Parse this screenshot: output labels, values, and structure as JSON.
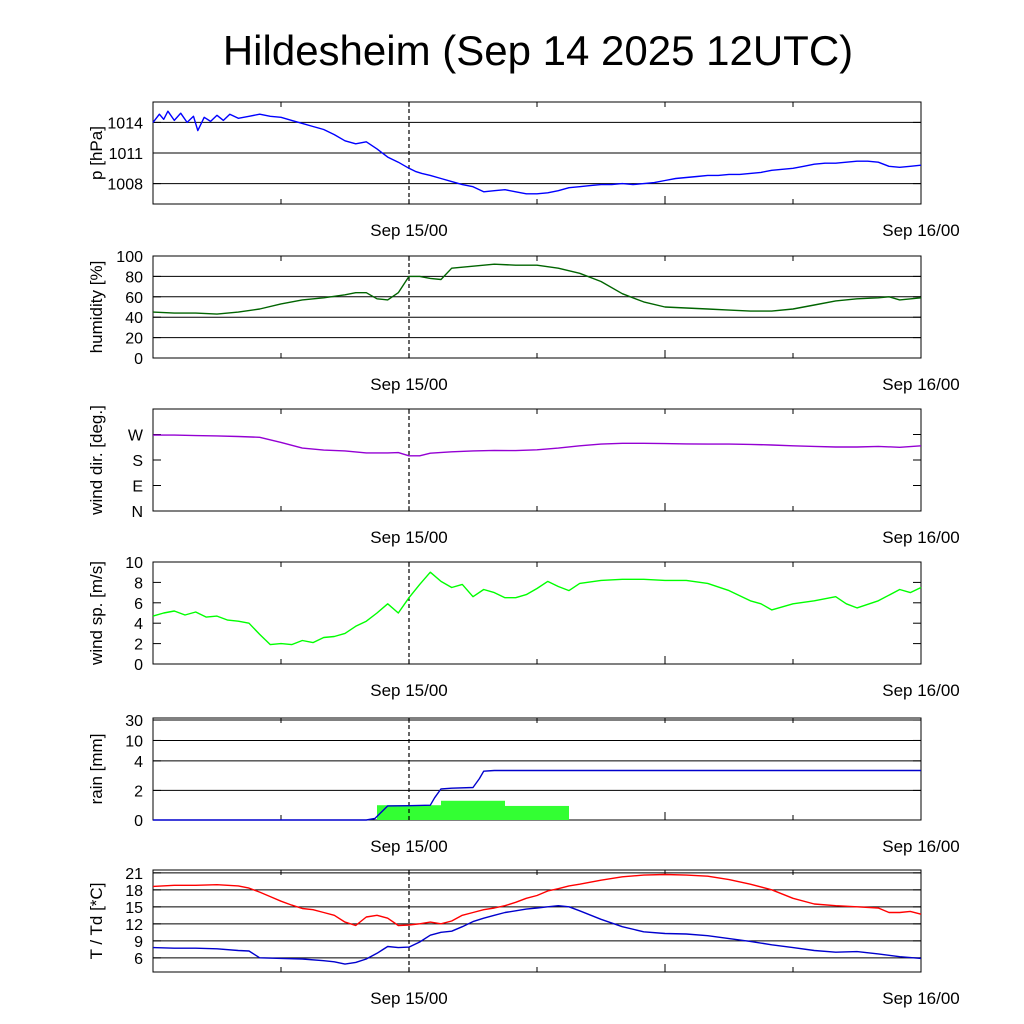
{
  "title": "Hildesheim (Sep 14 2025 12UTC)",
  "colors": {
    "pressure": "#0000ff",
    "humidity": "#006400",
    "wind_dir": "#9400d3",
    "wind_speed": "#00ff00",
    "rain_bar": "#33ff33",
    "rain_sum": "#0000cd",
    "temperature": "#ff0000",
    "dewpoint": "#0000cd",
    "gridline": "#000000"
  },
  "chart_data": [
    {
      "type": "line",
      "ylabel": "p [hPa]",
      "x_tick_labels": [
        "Sep 15/00",
        "Sep 16/00"
      ],
      "x_range": [
        0,
        36
      ],
      "ylim": [
        1006,
        1016
      ],
      "yticks": [
        {
          "v": 1008,
          "label": "1008"
        },
        {
          "v": 1011,
          "label": "1011"
        },
        {
          "v": 1014,
          "label": "1014"
        }
      ],
      "gridlines": [
        1008,
        1011,
        1014
      ],
      "series": [
        {
          "color_key": "pressure",
          "x": [
            0,
            0.3,
            0.5,
            0.7,
            1,
            1.3,
            1.6,
            1.9,
            2.1,
            2.4,
            2.7,
            3,
            3.3,
            3.6,
            4,
            4.5,
            5,
            5.5,
            6,
            6.5,
            7,
            7.5,
            8,
            8.5,
            9,
            9.5,
            10,
            10.5,
            11,
            11.5,
            12,
            12.3,
            12.6,
            13,
            13.5,
            14,
            14.5,
            15,
            15.5,
            16,
            16.5,
            17,
            17.5,
            18,
            18.5,
            19,
            19.5,
            20,
            20.5,
            21,
            21.5,
            22,
            22.5,
            23,
            23.5,
            24,
            24.5,
            25,
            25.5,
            26,
            26.5,
            27,
            27.5,
            28,
            28.5,
            29,
            29.5,
            30,
            30.5,
            31,
            31.5,
            32,
            32.5,
            33,
            33.5,
            34,
            34.5,
            35,
            35.5,
            36
          ],
          "values": [
            1014,
            1014.8,
            1014.3,
            1015.1,
            1014.2,
            1014.9,
            1014.0,
            1014.6,
            1013.2,
            1014.5,
            1014.1,
            1014.7,
            1014.2,
            1014.8,
            1014.4,
            1014.6,
            1014.8,
            1014.6,
            1014.5,
            1014.2,
            1013.9,
            1013.6,
            1013.3,
            1012.8,
            1012.2,
            1011.9,
            1012.1,
            1011.4,
            1010.6,
            1010.1,
            1009.5,
            1009.2,
            1009.0,
            1008.8,
            1008.5,
            1008.2,
            1007.9,
            1007.7,
            1007.2,
            1007.3,
            1007.4,
            1007.2,
            1007.0,
            1007.0,
            1007.1,
            1007.3,
            1007.6,
            1007.7,
            1007.8,
            1007.9,
            1007.9,
            1008.0,
            1007.9,
            1008.0,
            1008.1,
            1008.3,
            1008.5,
            1008.6,
            1008.7,
            1008.8,
            1008.8,
            1008.9,
            1008.9,
            1009.0,
            1009.1,
            1009.3,
            1009.4,
            1009.5,
            1009.7,
            1009.9,
            1010.0,
            1010.0,
            1010.1,
            1010.2,
            1010.2,
            1010.1,
            1009.7,
            1009.6,
            1009.7,
            1009.8
          ]
        }
      ]
    },
    {
      "type": "line",
      "ylabel": "humidity [%]",
      "x_tick_labels": [
        "Sep 15/00",
        "Sep 16/00"
      ],
      "x_range": [
        0,
        36
      ],
      "ylim": [
        0,
        100
      ],
      "yticks": [
        {
          "v": 0,
          "label": "0"
        },
        {
          "v": 20,
          "label": "20"
        },
        {
          "v": 40,
          "label": "40"
        },
        {
          "v": 60,
          "label": "60"
        },
        {
          "v": 80,
          "label": "80"
        },
        {
          "v": 100,
          "label": "100"
        }
      ],
      "gridlines": [
        20,
        40,
        60,
        80
      ],
      "series": [
        {
          "color_key": "humidity",
          "x": [
            0,
            1,
            2,
            3,
            4,
            5,
            6,
            7,
            8,
            9,
            9.5,
            10,
            10.5,
            11,
            11.5,
            12,
            12.5,
            13,
            13.5,
            14,
            15,
            16,
            17,
            18,
            19,
            20,
            21,
            22,
            23,
            24,
            25,
            26,
            27,
            28,
            29,
            30,
            31,
            32,
            33,
            34,
            34.5,
            35,
            36
          ],
          "values": [
            45,
            44,
            44,
            43,
            45,
            48,
            53,
            57,
            59,
            62,
            64,
            64,
            58,
            57,
            64,
            80,
            80,
            78,
            77,
            88,
            90,
            92,
            91,
            91,
            88,
            83,
            75,
            63,
            55,
            50,
            49,
            48,
            47,
            46,
            46,
            48,
            52,
            56,
            58,
            59,
            60,
            57,
            59
          ]
        }
      ]
    },
    {
      "type": "line",
      "ylabel": "wind dir. [deg.]",
      "x_tick_labels": [
        "Sep 15/00",
        "Sep 16/00"
      ],
      "x_range": [
        0,
        36
      ],
      "ylim": [
        0,
        360
      ],
      "yticks": [
        {
          "v": 0,
          "label": "N"
        },
        {
          "v": 90,
          "label": "E"
        },
        {
          "v": 180,
          "label": "S"
        },
        {
          "v": 270,
          "label": "W"
        }
      ],
      "gridlines": [],
      "series": [
        {
          "color_key": "wind_dir",
          "x": [
            0,
            1,
            2,
            3,
            4,
            5,
            6,
            7,
            8,
            9,
            10,
            11,
            11.5,
            12,
            12.5,
            13,
            14,
            15,
            16,
            17,
            18,
            19,
            20,
            21,
            22,
            23,
            24,
            25,
            26,
            27,
            28,
            29,
            30,
            31,
            32,
            33,
            34,
            35,
            36
          ],
          "values": [
            268,
            268,
            266,
            265,
            263,
            260,
            242,
            222,
            215,
            212,
            205,
            205,
            206,
            195,
            195,
            204,
            209,
            212,
            214,
            213,
            216,
            222,
            230,
            236,
            239,
            239,
            238,
            237,
            236,
            236,
            235,
            233,
            230,
            228,
            226,
            226,
            228,
            225,
            230
          ]
        }
      ]
    },
    {
      "type": "line",
      "ylabel": "wind sp. [m/s]",
      "x_tick_labels": [
        "Sep 15/00",
        "Sep 16/00"
      ],
      "x_range": [
        0,
        36
      ],
      "ylim": [
        0,
        10
      ],
      "yticks": [
        {
          "v": 0,
          "label": "0"
        },
        {
          "v": 2,
          "label": "2"
        },
        {
          "v": 4,
          "label": "4"
        },
        {
          "v": 6,
          "label": "6"
        },
        {
          "v": 8,
          "label": "8"
        },
        {
          "v": 10,
          "label": "10"
        }
      ],
      "gridlines": [],
      "series": [
        {
          "color_key": "wind_speed",
          "x": [
            0,
            0.5,
            1,
            1.5,
            2,
            2.5,
            3,
            3.5,
            4,
            4.5,
            5,
            5.5,
            6,
            6.5,
            7,
            7.5,
            8,
            8.5,
            9,
            9.5,
            10,
            10.5,
            11,
            11.5,
            12,
            12.5,
            13,
            13.5,
            14,
            14.5,
            15,
            15.5,
            16,
            16.5,
            17,
            17.5,
            18,
            18.5,
            19,
            19.5,
            20,
            21,
            22,
            23,
            24,
            25,
            26,
            27,
            28,
            28.5,
            29,
            30,
            31,
            32,
            32.5,
            33,
            34,
            35,
            35.5,
            36
          ],
          "values": [
            4.7,
            5.0,
            5.2,
            4.8,
            5.1,
            4.6,
            4.7,
            4.3,
            4.2,
            4.0,
            2.9,
            1.9,
            2.0,
            1.9,
            2.3,
            2.1,
            2.6,
            2.7,
            3.0,
            3.7,
            4.2,
            5.0,
            5.9,
            5.0,
            6.5,
            7.8,
            9.0,
            8.1,
            7.5,
            7.8,
            6.6,
            7.3,
            7.0,
            6.5,
            6.5,
            6.8,
            7.4,
            8.1,
            7.6,
            7.2,
            7.9,
            8.2,
            8.3,
            8.3,
            8.2,
            8.2,
            7.9,
            7.2,
            6.2,
            5.9,
            5.3,
            5.9,
            6.2,
            6.6,
            5.9,
            5.5,
            6.2,
            7.3,
            7.0,
            7.5
          ]
        }
      ]
    },
    {
      "type": "bar",
      "ylabel": "rain [mm]",
      "x_tick_labels": [
        "Sep 15/00",
        "Sep 16/00"
      ],
      "x_range": [
        0,
        36
      ],
      "scale": "nonlinear",
      "yticks": [
        {
          "v": 0,
          "label": "0"
        },
        {
          "v": 2,
          "label": "2"
        },
        {
          "v": 4,
          "label": "4"
        },
        {
          "v": 10,
          "label": "10"
        },
        {
          "v": 30,
          "label": "30"
        }
      ],
      "gridlines": [
        2,
        4,
        10,
        30
      ],
      "bars": [
        {
          "x0": 10.5,
          "x1": 13.5,
          "value": 1.0
        },
        {
          "x0": 13.5,
          "x1": 16.5,
          "value": 1.3
        },
        {
          "x0": 16.5,
          "x1": 19.5,
          "value": 0.95
        }
      ],
      "series": [
        {
          "color_key": "rain_sum",
          "x": [
            0,
            10,
            10.4,
            11,
            12,
            13,
            13.2,
            13.5,
            14,
            15,
            15.3,
            15.5,
            16,
            20,
            25,
            30,
            36
          ],
          "values": [
            0,
            0,
            0.1,
            0.95,
            0.97,
            1.0,
            1.5,
            2.1,
            2.15,
            2.2,
            2.8,
            3.3,
            3.35,
            3.35,
            3.35,
            3.35,
            3.35
          ]
        }
      ]
    },
    {
      "type": "line",
      "ylabel": "T / Td [*C]",
      "x_tick_labels": [
        "Sep 15/00",
        "Sep 16/00"
      ],
      "x_range": [
        0,
        36
      ],
      "ylim": [
        3.5,
        21.5
      ],
      "yticks": [
        {
          "v": 6,
          "label": "6"
        },
        {
          "v": 9,
          "label": "9"
        },
        {
          "v": 12,
          "label": "12"
        },
        {
          "v": 15,
          "label": "15"
        },
        {
          "v": 18,
          "label": "18"
        },
        {
          "v": 21,
          "label": "21"
        }
      ],
      "gridlines": [
        6,
        9,
        12,
        15,
        18,
        21
      ],
      "series": [
        {
          "color_key": "temperature",
          "x": [
            0,
            1,
            2,
            3,
            4,
            4.5,
            5,
            5.5,
            6,
            6.5,
            7,
            7.5,
            8,
            8.5,
            9,
            9.5,
            10,
            10.5,
            11,
            11.5,
            12,
            12.5,
            13,
            13.5,
            14,
            14.5,
            15,
            15.5,
            16,
            16.5,
            17,
            17.5,
            18,
            18.5,
            19,
            19.5,
            20,
            21,
            22,
            23,
            24,
            25,
            26,
            27,
            28,
            29,
            30,
            31,
            32,
            33,
            34,
            34.5,
            35,
            35.5,
            36
          ],
          "values": [
            18.6,
            18.8,
            18.8,
            18.9,
            18.7,
            18.3,
            17.6,
            16.8,
            16.0,
            15.3,
            14.7,
            14.5,
            14.0,
            13.5,
            12.3,
            11.7,
            13.2,
            13.5,
            13.0,
            11.7,
            11.8,
            12.0,
            12.3,
            12.0,
            12.5,
            13.5,
            14.0,
            14.5,
            14.8,
            15.2,
            15.8,
            16.5,
            17.0,
            17.8,
            18.2,
            18.7,
            19.0,
            19.7,
            20.3,
            20.6,
            20.7,
            20.6,
            20.4,
            19.8,
            19.0,
            18.0,
            16.5,
            15.5,
            15.2,
            15.0,
            14.8,
            14.0,
            14.0,
            14.2,
            13.7
          ]
        },
        {
          "color_key": "dewpoint",
          "x": [
            0,
            1,
            2,
            3,
            4,
            4.5,
            5,
            6,
            7,
            8,
            8.5,
            9,
            9.5,
            10,
            10.5,
            11,
            11.5,
            12,
            12.5,
            13,
            13.5,
            14,
            14.5,
            15,
            15.5,
            16,
            16.5,
            17,
            17.5,
            18,
            18.5,
            19,
            19.5,
            20,
            21,
            22,
            23,
            24,
            25,
            26,
            27,
            28,
            29,
            30,
            31,
            32,
            33,
            34,
            35,
            36
          ],
          "values": [
            7.8,
            7.7,
            7.7,
            7.6,
            7.3,
            7.2,
            6.0,
            5.9,
            5.8,
            5.5,
            5.3,
            4.9,
            5.2,
            5.8,
            6.8,
            8.0,
            7.8,
            7.9,
            8.8,
            10.0,
            10.5,
            10.7,
            11.5,
            12.4,
            13.0,
            13.5,
            14.0,
            14.3,
            14.6,
            14.8,
            15.0,
            15.2,
            15.0,
            14.3,
            12.8,
            11.5,
            10.6,
            10.3,
            10.2,
            9.9,
            9.4,
            8.9,
            8.3,
            7.8,
            7.3,
            7.0,
            7.1,
            6.7,
            6.2,
            5.9
          ]
        }
      ]
    }
  ]
}
